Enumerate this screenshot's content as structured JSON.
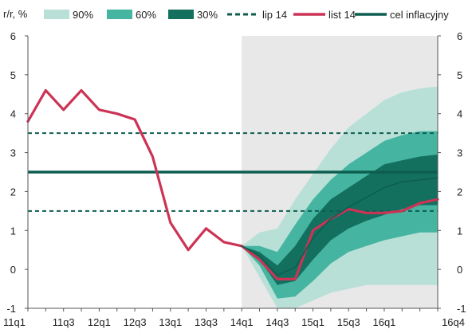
{
  "chart_data": {
    "type": "fan",
    "ylabel": "r/r, %",
    "ylim": [
      -1,
      6
    ],
    "yticks": [
      -1,
      0,
      1,
      2,
      3,
      4,
      5,
      6
    ],
    "x_labels": [
      "11q1",
      "11q3",
      "12q1",
      "12q3",
      "13q1",
      "13q3",
      "14q1",
      "14q3",
      "15q1",
      "15q3",
      "16q1",
      "16q4"
    ],
    "x_label_positions": [
      0,
      2,
      4,
      6,
      8,
      10,
      12,
      14,
      16,
      18,
      20,
      23
    ],
    "x_categories": [
      "11q1",
      "11q2",
      "11q3",
      "11q4",
      "12q1",
      "12q2",
      "12q3",
      "12q4",
      "13q1",
      "13q2",
      "13q3",
      "13q4",
      "14q1",
      "14q2",
      "14q3",
      "14q4",
      "15q1",
      "15q2",
      "15q3",
      "15q4",
      "16q1",
      "16q2",
      "16q3",
      "16q4"
    ],
    "forecast_start_index": 12,
    "forecast_shading_color": "#e8e8e8",
    "legend": [
      {
        "label": "90%",
        "type": "band",
        "color": "#b9e0d7"
      },
      {
        "label": "60%",
        "type": "band",
        "color": "#45b4a1"
      },
      {
        "label": "30%",
        "type": "band",
        "color": "#13705f"
      },
      {
        "label": "lip 14",
        "type": "dashed",
        "color": "#0d5e50"
      },
      {
        "label": "list 14",
        "type": "line",
        "color": "#cc3355"
      },
      {
        "label": "cel inflacyjny",
        "type": "line",
        "color": "#0d5e50"
      }
    ],
    "fan": {
      "x_index": [
        12,
        13,
        14,
        15,
        16,
        17,
        18,
        19,
        20,
        21,
        22,
        23
      ],
      "bands_90": {
        "lo": [
          0.6,
          -0.2,
          -1.0,
          -1.0,
          -0.8,
          -0.6,
          -0.5,
          -0.4,
          -0.4,
          -0.4,
          -0.4,
          -0.4
        ],
        "hi": [
          0.6,
          0.95,
          1.05,
          1.8,
          2.45,
          3.1,
          3.65,
          4.0,
          4.35,
          4.55,
          4.65,
          4.7
        ]
      },
      "bands_60": {
        "lo": [
          0.6,
          0.1,
          -0.75,
          -0.7,
          -0.3,
          0.15,
          0.45,
          0.6,
          0.75,
          0.85,
          0.95,
          0.95
        ],
        "hi": [
          0.6,
          0.6,
          0.45,
          1.15,
          1.8,
          2.3,
          2.7,
          3.0,
          3.3,
          3.45,
          3.55,
          3.55
        ]
      },
      "bands_30": {
        "lo": [
          0.6,
          0.25,
          -0.4,
          -0.3,
          0.25,
          0.75,
          1.05,
          1.25,
          1.4,
          1.55,
          1.65,
          1.65
        ],
        "hi": [
          0.6,
          0.45,
          0.1,
          0.6,
          1.3,
          1.8,
          2.1,
          2.4,
          2.7,
          2.8,
          2.9,
          2.95
        ]
      }
    },
    "series": [
      {
        "name": "list 14",
        "color": "#cc3355",
        "x_index": [
          0,
          1,
          2,
          3,
          4,
          5,
          6,
          7,
          8,
          9,
          10,
          11,
          12,
          13,
          14,
          15,
          16,
          17,
          18,
          19,
          20,
          21,
          22,
          23
        ],
        "values": [
          3.8,
          4.6,
          4.1,
          4.6,
          4.1,
          4.0,
          3.85,
          2.9,
          1.2,
          0.5,
          1.05,
          0.7,
          0.6,
          0.25,
          -0.25,
          -0.25,
          1.0,
          1.3,
          1.55,
          1.45,
          1.45,
          1.5,
          1.7,
          1.8
        ]
      },
      {
        "name": "lip 14",
        "color": "#0d5e50",
        "style": "solid-thin",
        "x_index": [
          12,
          13,
          14,
          15,
          16,
          17,
          18,
          19,
          20,
          21,
          22,
          23
        ],
        "values": [
          0.6,
          0.35,
          -0.15,
          0.05,
          0.8,
          1.3,
          1.6,
          1.85,
          2.1,
          2.25,
          2.3,
          2.35
        ]
      }
    ],
    "hlines": [
      {
        "name": "cel inflacyjny",
        "value": 2.5,
        "style": "solid",
        "color": "#0d5e50"
      },
      {
        "name": "tolerance-upper",
        "value": 3.5,
        "style": "dashed",
        "color": "#0d5e50"
      },
      {
        "name": "tolerance-lower",
        "value": 1.5,
        "style": "dashed",
        "color": "#0d5e50"
      }
    ],
    "grid": false
  }
}
